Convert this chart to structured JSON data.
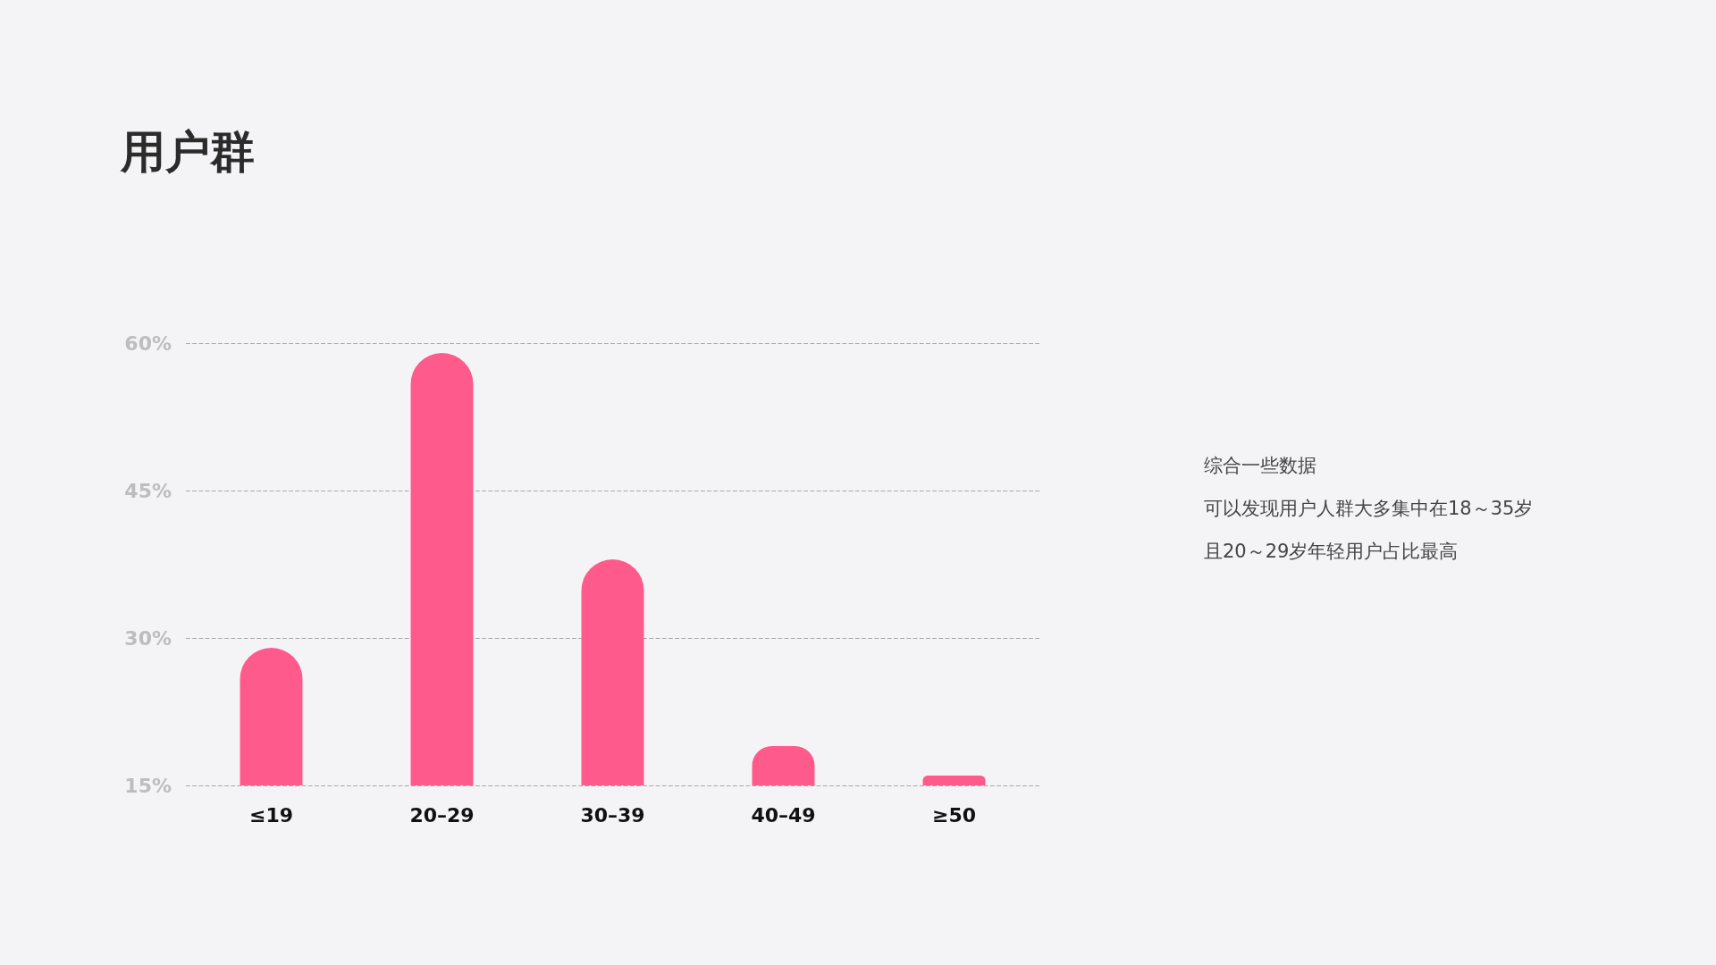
{
  "chart_data": {
    "type": "bar",
    "title": "用户群",
    "categories": [
      "≤19",
      "20–29",
      "30–39",
      "40–49",
      "≥50"
    ],
    "values": [
      29,
      59,
      38,
      19,
      16
    ],
    "color": "#ff5a8c",
    "ylim": [
      15,
      60
    ],
    "yticks": [
      {
        "value": 15,
        "label": "15%"
      },
      {
        "value": 30,
        "label": "30%"
      },
      {
        "value": 45,
        "label": "45%"
      },
      {
        "value": 60,
        "label": "60%"
      }
    ],
    "grid": "y",
    "annotations": [
      "综合一些数据",
      "可以发现用户人群大多集中在18～35岁",
      "且20～29岁年轻用户占比最高"
    ]
  }
}
